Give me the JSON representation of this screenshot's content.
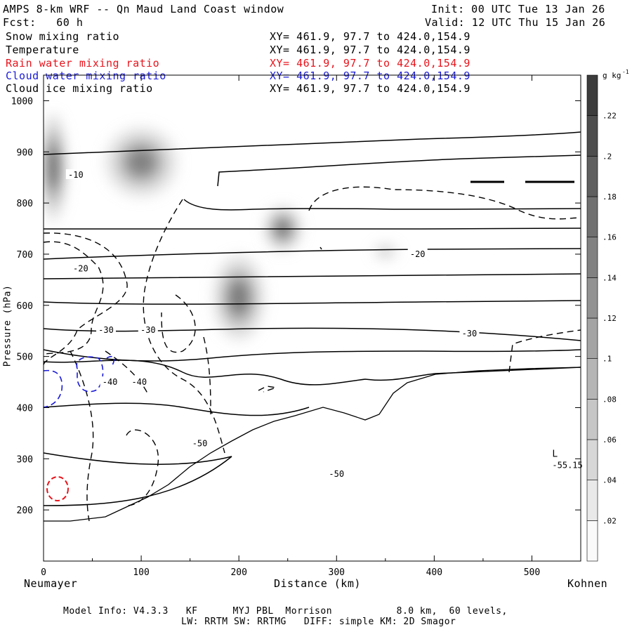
{
  "header": {
    "title": "AMPS 8-km WRF -- Qn Maud Land Coast window",
    "init": "Init: 00 UTC Tue 13 Jan 26",
    "fcst": "Fcst:   60 h",
    "valid": "Valid: 12 UTC Thu 15 Jan 26"
  },
  "fields": [
    {
      "name": "Snow mixing ratio",
      "xy": "XY= 461.9, 97.7 to 424.0,154.9",
      "color": "#000000"
    },
    {
      "name": "Temperature",
      "xy": "XY= 461.9, 97.7 to 424.0,154.9",
      "color": "#000000"
    },
    {
      "name": "Rain water mixing ratio",
      "xy": "XY= 461.9, 97.7 to 424.0,154.9",
      "color": "#e8141c"
    },
    {
      "name": "Cloud water mixing ratio",
      "xy": "XY= 461.9, 97.7 to 424.0,154.9",
      "color": "#1a1ad8"
    },
    {
      "name": "Cloud ice mixing ratio",
      "xy": "XY= 461.9, 97.7 to 424.0,154.9",
      "color": "#000000"
    }
  ],
  "footer": {
    "line1": "Model Info: V4.3.3   KF      MYJ PBL  Morrison           8.0 km,  60 levels,",
    "line2": "LW: RRTM SW: RRTMG   DIFF: simple KM: 2D Smagor"
  },
  "chart_data": {
    "type": "heatmap",
    "xlabel": "Distance (km)",
    "ylabel": "Pressure (hPa)",
    "xlim": [
      0,
      550
    ],
    "ylim": [
      1050,
      100
    ],
    "yscale": "linear (inverted)",
    "x_ticks": [
      "0",
      "100",
      "200",
      "300",
      "400",
      "500"
    ],
    "y_ticks": [
      "200",
      "300",
      "400",
      "500",
      "600",
      "700",
      "800",
      "900",
      "1000"
    ],
    "x_endpoints": {
      "left": "Neumayer",
      "right": "Kohnen"
    },
    "colorbar": {
      "unit": "g kg",
      "unit_exp": "-1",
      "levels": [
        ".02",
        ".04",
        ".06",
        ".08",
        ".1",
        ".12",
        ".14",
        ".16",
        ".18",
        ".2",
        ".22"
      ]
    },
    "snow_blobs": [
      {
        "x": 200,
        "p": 615,
        "rx": 27,
        "ry": 85,
        "intensity": 0.75
      },
      {
        "x": 245,
        "p": 750,
        "rx": 20,
        "ry": 45,
        "intensity": 0.8
      },
      {
        "x": 10,
        "p": 870,
        "rx": 14,
        "ry": 105,
        "intensity": 0.95
      },
      {
        "x": 100,
        "p": 880,
        "rx": 38,
        "ry": 70,
        "intensity": 0.7
      },
      {
        "x": 350,
        "p": 705,
        "rx": 15,
        "ry": 20,
        "intensity": 0.25
      }
    ],
    "temperature_isotherm_labels": [
      {
        "text": "-50",
        "x": 300,
        "p": 270
      },
      {
        "text": "-50",
        "x": 160,
        "p": 330
      },
      {
        "text": "-40",
        "x": 68,
        "p": 450
      },
      {
        "text": "-40",
        "x": 98,
        "p": 450
      },
      {
        "text": "-30",
        "x": 64,
        "p": 552
      },
      {
        "text": "-30",
        "x": 107,
        "p": 552
      },
      {
        "text": "-30",
        "x": 436,
        "p": 545
      },
      {
        "text": "-20",
        "x": 38,
        "p": 672
      },
      {
        "text": "-20",
        "x": 383,
        "p": 700
      },
      {
        "text": "-10",
        "x": 33,
        "p": 855
      }
    ],
    "low_center": {
      "label": "L",
      "value": "-55.15",
      "x": 482,
      "p": 300
    }
  }
}
